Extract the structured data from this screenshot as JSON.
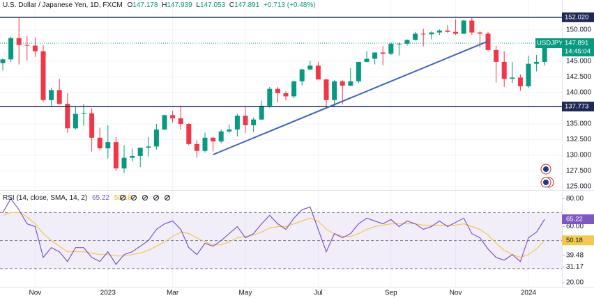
{
  "chart_data": [
    {
      "type": "candlestick",
      "header": {
        "symbol": "U.S. Dollar / Japanese Yen, 1D, FXCM",
        "open_label": "O",
        "open": 147.178,
        "high_label": "H",
        "high": 147.939,
        "low_label": "L",
        "low": 147.053,
        "close_label": "C",
        "close": 147.891,
        "change": "+0.713 (+0.48%)"
      },
      "categories": [
        null,
        null,
        null,
        null,
        "Nov",
        null,
        null,
        null,
        null,
        null,
        null,
        null,
        null,
        "2023",
        null,
        null,
        null,
        null,
        null,
        null,
        null,
        "Mar",
        null,
        null,
        null,
        null,
        null,
        null,
        null,
        null,
        "May",
        null,
        null,
        null,
        null,
        null,
        null,
        null,
        null,
        "Jul",
        null,
        null,
        null,
        null,
        null,
        null,
        null,
        null,
        "Sep",
        null,
        null,
        null,
        null,
        null,
        null,
        null,
        "Nov",
        null,
        null,
        null,
        null,
        null,
        null,
        null,
        null,
        "2024",
        null,
        null
      ],
      "series": [
        {
          "name": "USDJPY",
          "up_color": "#089981",
          "down_color": "#f23645",
          "values": [
            [
              144.7,
              145.4,
              143.5,
              145.3
            ],
            [
              145.3,
              148.9,
              144.9,
              148.7
            ],
            [
              148.7,
              151.9,
              144.5,
              147.6
            ],
            [
              147.6,
              149.0,
              145.1,
              147.5
            ],
            [
              147.5,
              148.8,
              145.7,
              146.6
            ],
            [
              146.6,
              147.6,
              138.5,
              138.8
            ],
            [
              138.8,
              140.8,
              137.7,
              140.4
            ],
            [
              140.4,
              142.2,
              138.1,
              138.2
            ],
            [
              138.2,
              139.9,
              133.6,
              134.3
            ],
            [
              134.3,
              137.8,
              134.1,
              136.6
            ],
            [
              136.6,
              138.2,
              134.7,
              136.7
            ],
            [
              136.7,
              137.5,
              130.6,
              132.8
            ],
            [
              132.8,
              134.4,
              130.8,
              131.1
            ],
            [
              131.1,
              134.8,
              129.5,
              132.1
            ],
            [
              132.1,
              132.9,
              127.5,
              127.9
            ],
            [
              127.9,
              131.6,
              127.2,
              129.6
            ],
            [
              129.6,
              131.1,
              129.0,
              129.9
            ],
            [
              129.9,
              131.2,
              128.1,
              131.2
            ],
            [
              131.2,
              132.9,
              129.8,
              131.4
            ],
            [
              131.4,
              135.0,
              130.9,
              134.1
            ],
            [
              134.1,
              136.5,
              134.0,
              136.4
            ],
            [
              136.4,
              137.1,
              135.2,
              135.9
            ],
            [
              135.9,
              137.9,
              134.1,
              135.0
            ],
            [
              135.0,
              135.1,
              131.6,
              131.8
            ],
            [
              131.8,
              132.4,
              129.6,
              130.7
            ],
            [
              130.7,
              133.6,
              130.4,
              132.8
            ],
            [
              132.8,
              133.0,
              130.6,
              132.2
            ],
            [
              132.2,
              134.1,
              131.9,
              133.8
            ],
            [
              133.8,
              134.9,
              133.6,
              134.1
            ],
            [
              134.1,
              136.6,
              133.0,
              136.3
            ],
            [
              136.3,
              137.8,
              133.5,
              134.8
            ],
            [
              134.8,
              136.0,
              133.7,
              135.7
            ],
            [
              135.7,
              138.7,
              135.6,
              137.9
            ],
            [
              137.9,
              140.9,
              137.6,
              140.6
            ],
            [
              140.6,
              140.9,
              138.4,
              139.9
            ],
            [
              139.9,
              140.2,
              138.8,
              139.4
            ],
            [
              139.4,
              141.9,
              139.1,
              141.8
            ],
            [
              141.8,
              143.8,
              141.1,
              143.7
            ],
            [
              143.7,
              145.1,
              143.6,
              144.3
            ],
            [
              144.3,
              144.9,
              142.1,
              142.1
            ],
            [
              142.1,
              142.2,
              137.7,
              138.8
            ],
            [
              138.8,
              142.0,
              137.7,
              141.8
            ],
            [
              141.8,
              142.0,
              138.1,
              141.1
            ],
            [
              141.1,
              143.9,
              141.0,
              141.8
            ],
            [
              141.8,
              144.9,
              141.5,
              144.9
            ],
            [
              144.9,
              146.6,
              144.8,
              145.4
            ],
            [
              145.4,
              146.4,
              144.5,
              146.4
            ],
            [
              146.4,
              147.4,
              144.4,
              146.2
            ],
            [
              146.2,
              147.9,
              146.0,
              147.8
            ],
            [
              147.8,
              148.0,
              145.9,
              147.8
            ],
            [
              147.8,
              148.5,
              147.5,
              148.4
            ],
            [
              148.4,
              149.7,
              148.3,
              149.4
            ],
            [
              149.4,
              150.2,
              147.4,
              149.3
            ],
            [
              149.3,
              149.8,
              148.5,
              149.6
            ],
            [
              149.6,
              150.1,
              149.2,
              149.9
            ],
            [
              149.9,
              150.8,
              149.5,
              149.7
            ],
            [
              149.7,
              151.7,
              149.2,
              149.4
            ],
            [
              149.4,
              151.6,
              149.3,
              151.5
            ],
            [
              151.5,
              151.9,
              149.2,
              149.6
            ],
            [
              149.6,
              149.8,
              147.2,
              149.4
            ],
            [
              149.4,
              149.7,
              146.7,
              146.8
            ],
            [
              146.8,
              147.5,
              141.6,
              144.9
            ],
            [
              144.9,
              146.6,
              140.9,
              142.2
            ],
            [
              142.2,
              144.9,
              141.5,
              142.4
            ],
            [
              142.4,
              142.9,
              140.3,
              141.0
            ],
            [
              141.0,
              145.9,
              140.8,
              144.6
            ],
            [
              144.6,
              146.0,
              143.4,
              144.9
            ],
            [
              144.9,
              148.2,
              144.3,
              147.891
            ]
          ]
        }
      ],
      "last_price": 147.891,
      "countdown": "14:45:04",
      "hlines": [
        {
          "value": 152.02,
          "label": "152.020"
        },
        {
          "value": 137.773,
          "label": "137.773"
        }
      ],
      "hline_color": "#1e2a55",
      "trendline": {
        "color": "#3d63c4",
        "points": [
          [
            26,
            130.1
          ],
          [
            60,
            148.2
          ]
        ]
      },
      "ylim": [
        124.56,
        154.78
      ],
      "yticks": [
        {
          "value": 125,
          "label": "125.000"
        },
        {
          "value": 127.5,
          "label": "127.500"
        },
        {
          "value": 130,
          "label": "130.000"
        },
        {
          "value": 132.5,
          "label": "132.500"
        },
        {
          "value": 135,
          "label": "135.000"
        },
        {
          "value": 140,
          "label": "140.000"
        },
        {
          "value": 142.5,
          "label": "142.500"
        },
        {
          "value": 145,
          "label": "145.000"
        },
        {
          "value": 150,
          "label": "150.000"
        }
      ],
      "grid": true
    },
    {
      "type": "rsi",
      "title": "RSI (14, close, SMA, 14, 2)",
      "series": [
        {
          "color": "#7e57c2",
          "values": [
            70,
            80,
            72,
            62,
            60,
            38,
            45,
            42,
            35,
            45,
            45,
            38,
            35,
            42,
            33,
            40,
            42,
            46,
            50,
            58,
            62,
            64,
            58,
            45,
            40,
            48,
            46,
            50,
            55,
            60,
            52,
            55,
            62,
            68,
            62,
            58,
            66,
            72,
            74,
            58,
            42,
            55,
            52,
            55,
            62,
            66,
            64,
            62,
            65,
            60,
            64,
            62,
            58,
            60,
            64,
            60,
            63,
            66,
            55,
            52,
            44,
            38,
            36,
            40,
            35,
            52,
            56,
            65.22
          ]
        },
        {
          "color": "#f2c94c",
          "values": [
            68,
            70,
            70,
            67,
            62,
            55,
            50,
            46,
            42,
            42,
            42,
            41,
            40,
            40,
            39,
            39,
            40,
            41,
            43,
            46,
            49,
            53,
            56,
            55,
            52,
            49,
            47,
            47,
            49,
            52,
            53,
            54,
            56,
            59,
            60,
            60,
            62,
            64,
            66,
            64,
            58,
            55,
            53,
            53,
            55,
            58,
            60,
            61,
            62,
            62,
            62,
            62,
            61,
            61,
            61,
            61,
            61,
            62,
            60,
            58,
            54,
            48,
            43,
            40,
            38,
            40,
            44,
            50.18
          ]
        }
      ],
      "band": {
        "upper": 70,
        "middle": 50,
        "lower": 30,
        "color": "#7e57c2"
      },
      "ylim": [
        17,
        85.6
      ],
      "yticks": [
        {
          "value": 80,
          "label": "80.00"
        },
        {
          "value": 60,
          "label": "60.00"
        },
        39.48,
        31.17,
        {
          "value": 20,
          "label": "20.00"
        }
      ]
    }
  ]
}
